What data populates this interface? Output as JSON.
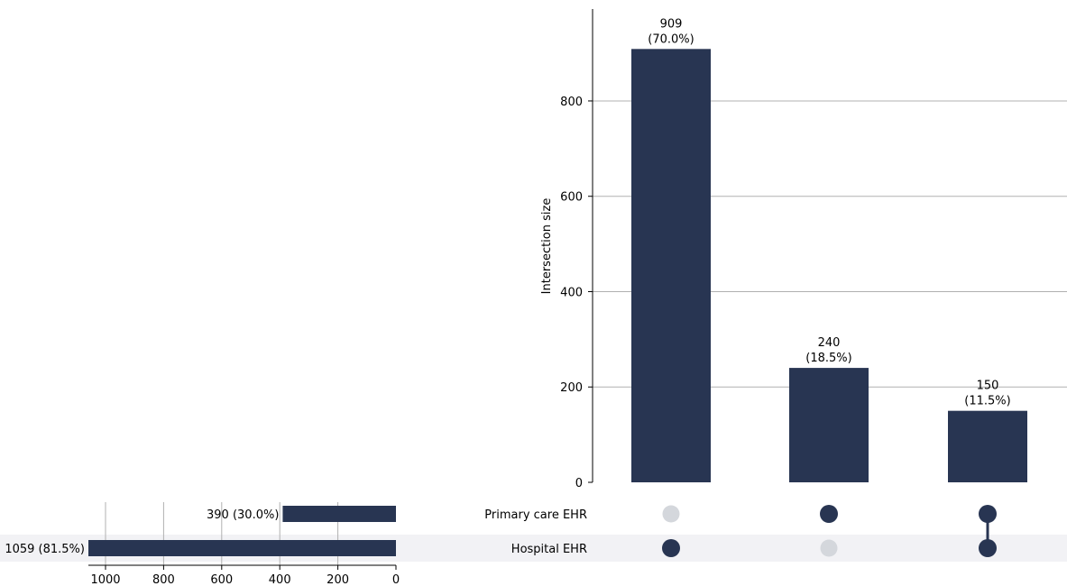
{
  "colors": {
    "bar": "#283552",
    "dot_inactive": "#d4d7dc",
    "row_shade": "#f2f2f5",
    "grid": "#b0b0b0",
    "axis": "#000000"
  },
  "chart_data": {
    "type": "upset",
    "sets": [
      {
        "name": "Primary care EHR",
        "size": 390,
        "size_label": "390 (30.0%)"
      },
      {
        "name": "Hospital EHR",
        "size": 1059,
        "size_label": "1059 (81.5%)"
      }
    ],
    "intersections": [
      {
        "members": [
          "Hospital EHR"
        ],
        "value": 909,
        "label_count": "909",
        "label_pct": "(70.0%)"
      },
      {
        "members": [
          "Primary care EHR"
        ],
        "value": 240,
        "label_count": "240",
        "label_pct": "(18.5%)"
      },
      {
        "members": [
          "Primary care EHR",
          "Hospital EHR"
        ],
        "value": 150,
        "label_count": "150",
        "label_pct": "(11.5%)"
      }
    ],
    "intersection_axis": {
      "ylabel": "Intersection size",
      "ylim": [
        0,
        955
      ],
      "ticks": [
        0,
        200,
        400,
        600,
        800
      ],
      "grid": true
    },
    "set_size_axis": {
      "xlim": [
        1059,
        0
      ],
      "ticks": [
        1000,
        800,
        600,
        400,
        200,
        0
      ],
      "grid": true
    }
  }
}
